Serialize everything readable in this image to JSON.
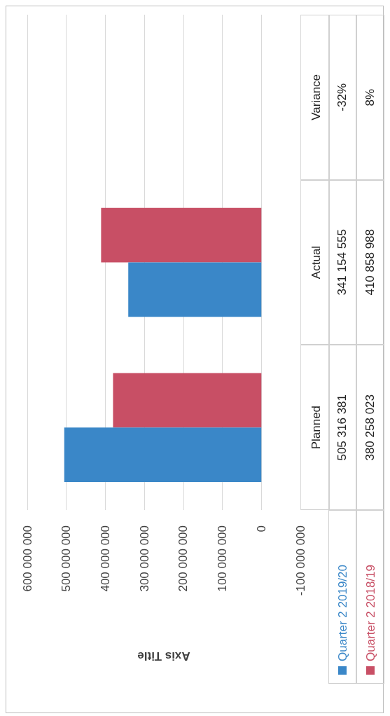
{
  "chart_data": {
    "type": "bar",
    "orientation": "horizontal",
    "xlabel": "Axis Title",
    "categories": [
      "Variance",
      "Actual",
      "Planned"
    ],
    "series": [
      {
        "name": "Quarter 2 2019/20",
        "color": "#3a87c8",
        "values": [
          -0.32,
          341154555,
          505316381
        ],
        "value_labels": [
          "-32%",
          "341 154 555",
          "505 316 381"
        ]
      },
      {
        "name": "Quarter 2 2018/19",
        "color": "#c84f65",
        "values": [
          0.08,
          410858988,
          380258023
        ],
        "value_labels": [
          "8%",
          "410 858 988",
          "380 258 023"
        ]
      }
    ],
    "xlim": [
      600000000,
      -100000000
    ],
    "xticks": [
      {
        "value": 600000000,
        "label": "600 000 000"
      },
      {
        "value": 500000000,
        "label": "500 000 000"
      },
      {
        "value": 400000000,
        "label": "400 000 000"
      },
      {
        "value": 300000000,
        "label": "300 000 000"
      },
      {
        "value": 200000000,
        "label": "200 000 000"
      },
      {
        "value": 100000000,
        "label": "100 000 000"
      },
      {
        "value": 0,
        "label": "0"
      },
      {
        "value": -100000000,
        "label": "-100 000 000"
      }
    ],
    "grid": "x",
    "legend": "right"
  }
}
